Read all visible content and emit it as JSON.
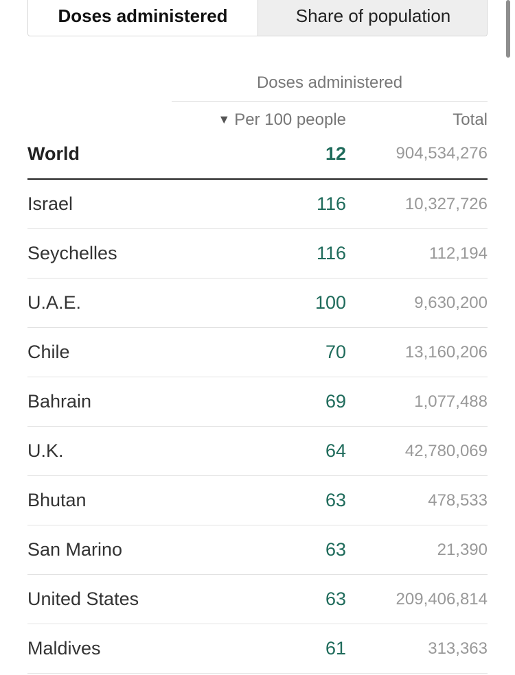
{
  "tabs": [
    {
      "label": "Doses administered",
      "active": true
    },
    {
      "label": "Share of population",
      "active": false
    }
  ],
  "table": {
    "group_header": "Doses administered",
    "columns": {
      "per100": "Per 100 people",
      "total": "Total",
      "sort_icon": "▼"
    },
    "world": {
      "country": "World",
      "per100": "12",
      "total": "904,534,276"
    },
    "rows": [
      {
        "country": "Israel",
        "per100": "116",
        "total": "10,327,726"
      },
      {
        "country": "Seychelles",
        "per100": "116",
        "total": "112,194"
      },
      {
        "country": "U.A.E.",
        "per100": "100",
        "total": "9,630,200"
      },
      {
        "country": "Chile",
        "per100": "70",
        "total": "13,160,206"
      },
      {
        "country": "Bahrain",
        "per100": "69",
        "total": "1,077,488"
      },
      {
        "country": "U.K.",
        "per100": "64",
        "total": "42,780,069"
      },
      {
        "country": "Bhutan",
        "per100": "63",
        "total": "478,533"
      },
      {
        "country": "San Marino",
        "per100": "63",
        "total": "21,390"
      },
      {
        "country": "United States",
        "per100": "63",
        "total": "209,406,814"
      },
      {
        "country": "Maldives",
        "per100": "61",
        "total": "313,363"
      }
    ]
  },
  "colors": {
    "accent_green": "#1f6b5b",
    "muted_gray": "#999999",
    "tab_inactive_bg": "#eeeeee"
  }
}
